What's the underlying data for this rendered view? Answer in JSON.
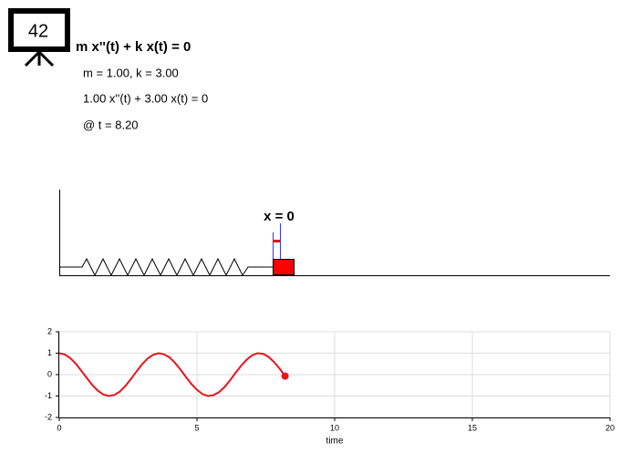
{
  "logo": {
    "text": "42"
  },
  "header": {
    "title": "m x''(t) + k x(t) = 0",
    "params": "m = 1.00, k = 3.00",
    "equation": "1.00 x''(t) + 3.00 x(t) = 0",
    "time": "@ t = 8.20"
  },
  "spring": {
    "label": "x = 0"
  },
  "chart_data": {
    "type": "line",
    "x": [
      0,
      0.2,
      0.4,
      0.6,
      0.8,
      1.0,
      1.2,
      1.4,
      1.6,
      1.8,
      2.0,
      2.2,
      2.4,
      2.6,
      2.8,
      3.0,
      3.2,
      3.4,
      3.6,
      3.8,
      4.0,
      4.2,
      4.4,
      4.6,
      4.8,
      5.0,
      5.2,
      5.4,
      5.6,
      5.8,
      6.0,
      6.2,
      6.4,
      6.6,
      6.8,
      7.0,
      7.2,
      7.4,
      7.6,
      7.8,
      8.0,
      8.2
    ],
    "values": [
      1,
      0.94,
      0.77,
      0.51,
      0.18,
      -0.16,
      -0.49,
      -0.75,
      -0.93,
      -1.0,
      -0.95,
      -0.79,
      -0.53,
      -0.21,
      0.14,
      0.47,
      0.74,
      0.92,
      1.0,
      0.95,
      0.81,
      0.55,
      0.24,
      -0.11,
      -0.44,
      -0.71,
      -0.91,
      -1.0,
      -0.96,
      -0.82,
      -0.58,
      -0.27,
      0.08,
      0.41,
      0.69,
      0.9,
      1.0,
      0.97,
      0.83,
      0.59,
      0.28,
      -0.07
    ],
    "color": "#e8141c",
    "xlabel": "time",
    "xlim": [
      0,
      20
    ],
    "ylim": [
      -2,
      2
    ],
    "xticks": [
      0,
      5,
      10,
      15,
      20
    ],
    "yticks": [
      -2,
      -1,
      0,
      1,
      2
    ],
    "grid": true
  }
}
